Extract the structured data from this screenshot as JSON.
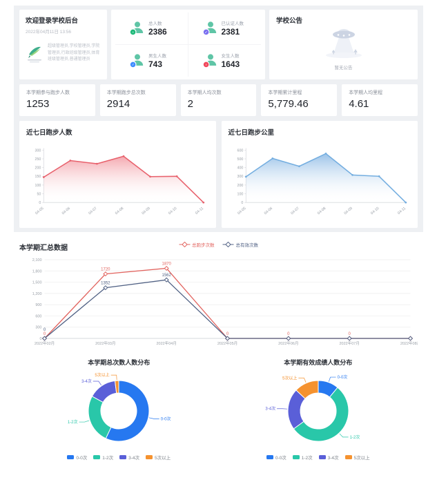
{
  "welcome": {
    "title": "欢迎登录学校后台",
    "date": "2022年04月11日 13:56",
    "roles": "超级管理员,学校管理员,学院管理员,行政班级管理员,体育班级管理员,普通管理员"
  },
  "overview": {
    "icon_color": "#5fc5a6",
    "items": [
      {
        "label": "总人数",
        "value": "2386",
        "badge_color": "#1bb978",
        "badge_glyph": "○"
      },
      {
        "label": "已认证人数",
        "value": "2381",
        "badge_color": "#7a6ff0",
        "badge_glyph": "✓"
      },
      {
        "label": "男生人数",
        "value": "743",
        "badge_color": "#3f8cff",
        "badge_glyph": "♂"
      },
      {
        "label": "女生人数",
        "value": "1643",
        "badge_color": "#f0485c",
        "badge_glyph": "♀"
      }
    ]
  },
  "announcement": {
    "title": "学校公告",
    "empty_text": "暂无公告"
  },
  "kpis": [
    {
      "label": "本学期参与跑步人数",
      "value": "1253"
    },
    {
      "label": "本学期跑步总次数",
      "value": "2914"
    },
    {
      "label": "本学期人均次数",
      "value": "2"
    },
    {
      "label": "本学期累计里程",
      "value": "5,779.46"
    },
    {
      "label": "本学期人均里程",
      "value": "4.61"
    }
  ],
  "chart_data": [
    {
      "id": "area-people",
      "type": "area",
      "title": "近七日跑步人数",
      "x": [
        "04-05",
        "04-06",
        "04-07",
        "04-08",
        "04-09",
        "04-10",
        "04-11"
      ],
      "values": [
        145,
        240,
        222,
        265,
        148,
        150,
        0
      ],
      "ylim": [
        0,
        300
      ],
      "ytick_step": 50,
      "grid": false,
      "line_color": "#e8616c",
      "fill_from": "rgba(235,97,110,0.50)",
      "fill_to": "rgba(255,255,255,0)"
    },
    {
      "id": "area-km",
      "type": "area",
      "title": "近七日跑步公里",
      "x": [
        "04-05",
        "04-06",
        "04-07",
        "04-08",
        "04-09",
        "04-10",
        "04-11"
      ],
      "values": [
        295,
        505,
        415,
        560,
        315,
        300,
        0
      ],
      "ylim": [
        0,
        600
      ],
      "ytick_step": 100,
      "grid": false,
      "line_color": "#74aee0",
      "fill_from": "rgba(133,181,227,0.75)",
      "fill_to": "rgba(255,255,255,0)"
    },
    {
      "id": "semester-line",
      "type": "line",
      "title": "本学期汇总数据",
      "categories": [
        "2022年02月",
        "2022年03月",
        "2022年04月",
        "2022年05月",
        "2022年06月",
        "2022年07月",
        "2022年08月"
      ],
      "ylim": [
        0,
        2100
      ],
      "ytick_step": 300,
      "grid": true,
      "legend_position": "top-center",
      "series": [
        {
          "name": "总跑步次数",
          "color": "#e2645f",
          "values": [
            0,
            1720,
            1870,
            0,
            0,
            0,
            0
          ],
          "labels": [
            "0",
            "1720",
            "1870",
            "0",
            "0",
            "0",
            ""
          ]
        },
        {
          "name": "总有效次数",
          "color": "#506184",
          "values": [
            0,
            1352,
            1562,
            0,
            0,
            0,
            0
          ],
          "labels": [
            "0",
            "1352",
            "1562",
            "",
            "",
            "",
            ""
          ]
        }
      ]
    },
    {
      "id": "donut-total",
      "type": "pie",
      "title": "本学期总次数人数分布",
      "labels": [
        "0-0次",
        "1-2次",
        "3-4次",
        "5次以上"
      ],
      "values_percent": [
        57,
        26,
        15,
        2
      ],
      "colors": [
        "#2678f0",
        "#29c7a9",
        "#5a5fd8",
        "#f5922f"
      ],
      "legend_position": "bottom"
    },
    {
      "id": "donut-valid",
      "type": "pie",
      "title": "本学期有效成绩人数分布",
      "labels": [
        "0-0次",
        "1-2次",
        "3-4次",
        "5次以上"
      ],
      "values_percent": [
        11,
        54,
        22,
        13
      ],
      "colors": [
        "#2678f0",
        "#29c7a9",
        "#5a5fd8",
        "#f5922f"
      ],
      "legend_position": "bottom"
    }
  ]
}
